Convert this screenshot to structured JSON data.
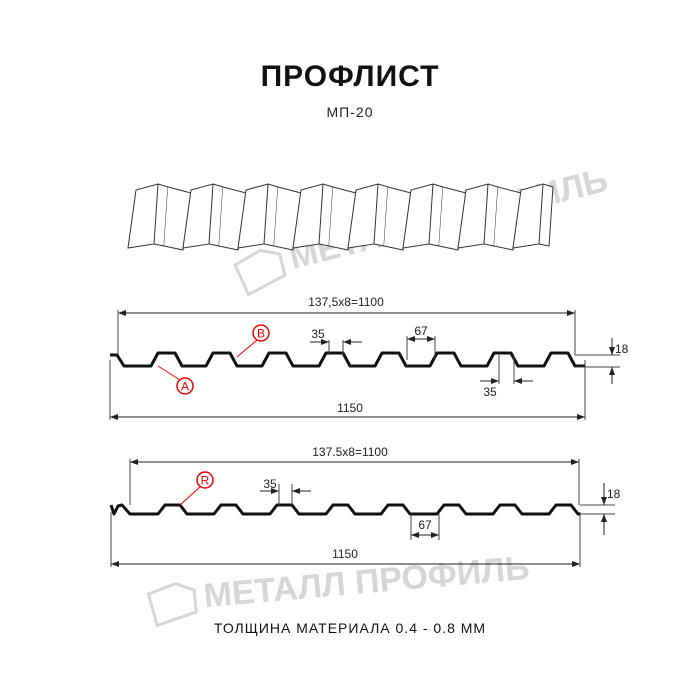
{
  "header": {
    "title": "ПРОФЛИСТ",
    "subtitle": "МП-20"
  },
  "watermark": "МЕТАЛЛ ПРОФИЛЬ",
  "profile_a": {
    "pitch_label": "137,5x8=1100",
    "width_label": "1150",
    "top_label": "35",
    "bottom_label": "35",
    "rib_label": "67",
    "height_label": "18",
    "marker_a": "A",
    "marker_b": "B"
  },
  "profile_b": {
    "pitch_label": "137.5x8=1100",
    "width_label": "1150",
    "top_label": "35",
    "rib_label": "67",
    "height_label": "18",
    "marker_r": "R"
  },
  "footer": "ТОЛЩИНА МАТЕРИАЛА 0.4 - 0.8 ММ",
  "colors": {
    "marker": "#e00000",
    "profile": "#111111",
    "watermark": "#d6d6d6"
  }
}
